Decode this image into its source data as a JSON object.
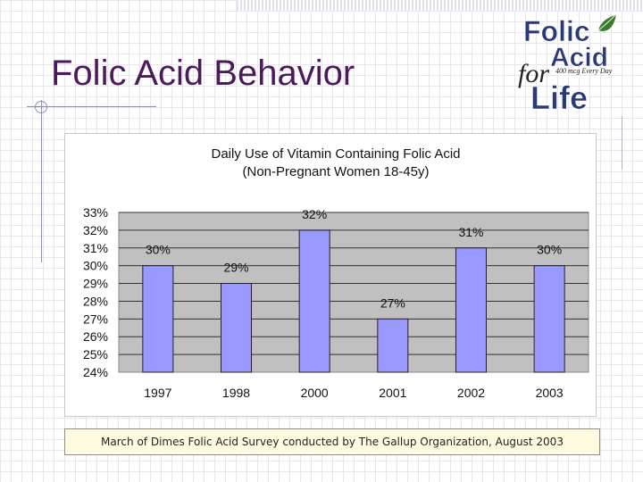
{
  "slide": {
    "title": "Folic Acid Behavior",
    "footer": "March of Dimes Folic Acid Survey conducted by The Gallup Organization, August 2003"
  },
  "logo": {
    "line1": "Folic",
    "line2": "Acid",
    "for": "for",
    "tagline": "400 mcg Every Day",
    "line3": "Life",
    "colors": {
      "navy": "#2a3a78",
      "leaf": "#3a7a2a",
      "script": "#222222"
    }
  },
  "chart_data": {
    "type": "bar",
    "title": "Daily Use of Vitamin Containing Folic Acid",
    "subtitle": "(Non-Pregnant Women 18-45y)",
    "categories": [
      "1997",
      "1998",
      "2000",
      "2001",
      "2002",
      "2003"
    ],
    "values": [
      30,
      29,
      32,
      27,
      31,
      30
    ],
    "data_labels": [
      "30%",
      "29%",
      "32%",
      "27%",
      "31%",
      "30%"
    ],
    "ylim": [
      24,
      33
    ],
    "ytick_labels": [
      "24%",
      "25%",
      "26%",
      "27%",
      "28%",
      "29%",
      "30%",
      "31%",
      "32%",
      "33%"
    ],
    "xlabel": "",
    "ylabel": "",
    "grid": true,
    "legend": "none",
    "colors": {
      "bar": "#9999ff",
      "bar_stroke": "#222222",
      "plot_bg": "#c0c0c0",
      "grid": "#333333"
    }
  }
}
